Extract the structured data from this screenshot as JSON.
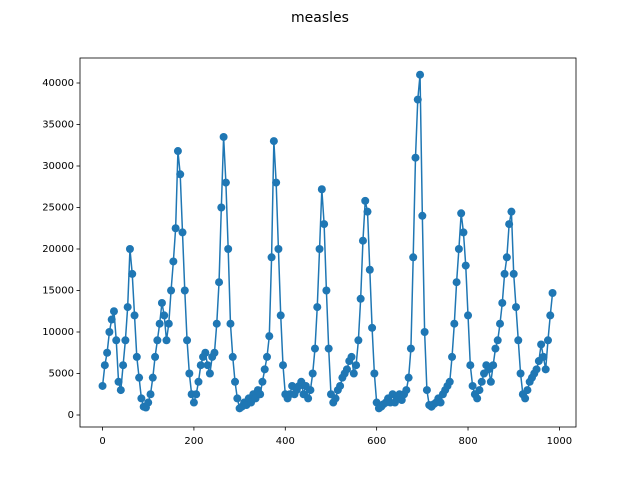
{
  "chart_data": {
    "type": "line",
    "title": "measles",
    "color": "#1f77b4",
    "markers": true,
    "x": [
      0,
      5,
      10,
      15,
      20,
      25,
      30,
      35,
      40,
      45,
      50,
      55,
      60,
      65,
      70,
      75,
      80,
      85,
      90,
      95,
      100,
      105,
      110,
      115,
      120,
      125,
      130,
      135,
      140,
      145,
      150,
      155,
      160,
      165,
      170,
      175,
      180,
      185,
      190,
      195,
      200,
      205,
      210,
      215,
      220,
      225,
      230,
      235,
      240,
      245,
      250,
      255,
      260,
      265,
      270,
      275,
      280,
      285,
      290,
      295,
      300,
      305,
      310,
      315,
      320,
      325,
      330,
      335,
      340,
      345,
      350,
      355,
      360,
      365,
      370,
      375,
      380,
      385,
      390,
      395,
      400,
      405,
      410,
      415,
      420,
      425,
      430,
      435,
      440,
      445,
      450,
      455,
      460,
      465,
      470,
      475,
      480,
      485,
      490,
      495,
      500,
      505,
      510,
      515,
      520,
      525,
      530,
      535,
      540,
      545,
      550,
      555,
      560,
      565,
      570,
      575,
      580,
      585,
      590,
      595,
      600,
      605,
      610,
      615,
      620,
      625,
      630,
      635,
      640,
      645,
      650,
      655,
      660,
      665,
      670,
      675,
      680,
      685,
      690,
      695,
      700,
      705,
      710,
      715,
      720,
      725,
      730,
      735,
      740,
      745,
      750,
      755,
      760,
      765,
      770,
      775,
      780,
      785,
      790,
      795,
      800,
      805,
      810,
      815,
      820,
      825,
      830,
      835,
      840,
      845,
      850,
      855,
      860,
      865,
      870,
      875,
      880,
      885,
      890,
      895,
      900,
      905,
      910,
      915,
      920,
      925,
      930,
      935,
      940,
      945,
      950,
      955,
      960,
      965,
      970,
      975,
      980,
      985
    ],
    "values": [
      3500,
      6000,
      7500,
      10000,
      11500,
      12500,
      9000,
      4000,
      3000,
      6000,
      9000,
      13000,
      20000,
      17000,
      12000,
      7000,
      4500,
      2000,
      1000,
      900,
      1500,
      2500,
      4500,
      7000,
      9000,
      11000,
      13500,
      12000,
      9000,
      11000,
      15000,
      18500,
      22500,
      31800,
      29000,
      22000,
      15000,
      9000,
      5000,
      2500,
      1500,
      2500,
      4000,
      6000,
      7000,
      7500,
      6000,
      5000,
      7000,
      7500,
      11000,
      16000,
      25000,
      33500,
      28000,
      20000,
      11000,
      7000,
      4000,
      2000,
      800,
      1000,
      1500,
      1200,
      2000,
      1500,
      2500,
      2000,
      3000,
      2500,
      4000,
      5500,
      7000,
      9500,
      19000,
      33000,
      28000,
      20000,
      12000,
      6000,
      2500,
      2000,
      2500,
      3500,
      2500,
      3000,
      3500,
      4000,
      2500,
      3500,
      2000,
      3000,
      5000,
      8000,
      13000,
      20000,
      27200,
      23000,
      15000,
      8000,
      2500,
      1500,
      2000,
      3000,
      3500,
      4500,
      5000,
      5500,
      6500,
      7000,
      5000,
      6000,
      9000,
      14000,
      21000,
      25800,
      24500,
      17500,
      10500,
      5000,
      1500,
      800,
      1000,
      1300,
      1500,
      2000,
      1500,
      2500,
      1500,
      2000,
      2500,
      1800,
      2500,
      3000,
      4500,
      8000,
      19000,
      31000,
      38000,
      41000,
      24000,
      10000,
      3000,
      1200,
      1000,
      1300,
      1500,
      2000,
      1500,
      2500,
      3000,
      3500,
      4000,
      7000,
      11000,
      16000,
      20000,
      24300,
      22000,
      18000,
      12000,
      6000,
      3500,
      2500,
      2000,
      3000,
      4000,
      5000,
      6000,
      5500,
      4000,
      6000,
      8000,
      9000,
      11000,
      13500,
      17000,
      19000,
      23000,
      24500,
      17000,
      13000,
      9000,
      5000,
      2500,
      2000,
      3000,
      4000,
      4500,
      5000,
      5500,
      6500,
      8500,
      7000,
      5500,
      9000,
      12000,
      14700
    ],
    "xlim": [
      -49.35,
      1036.35
    ],
    "ylim": [
      -1446,
      43012
    ],
    "xticks": [
      0,
      200,
      400,
      600,
      800,
      1000
    ],
    "yticks": [
      0,
      5000,
      10000,
      15000,
      20000,
      25000,
      30000,
      35000,
      40000
    ]
  }
}
